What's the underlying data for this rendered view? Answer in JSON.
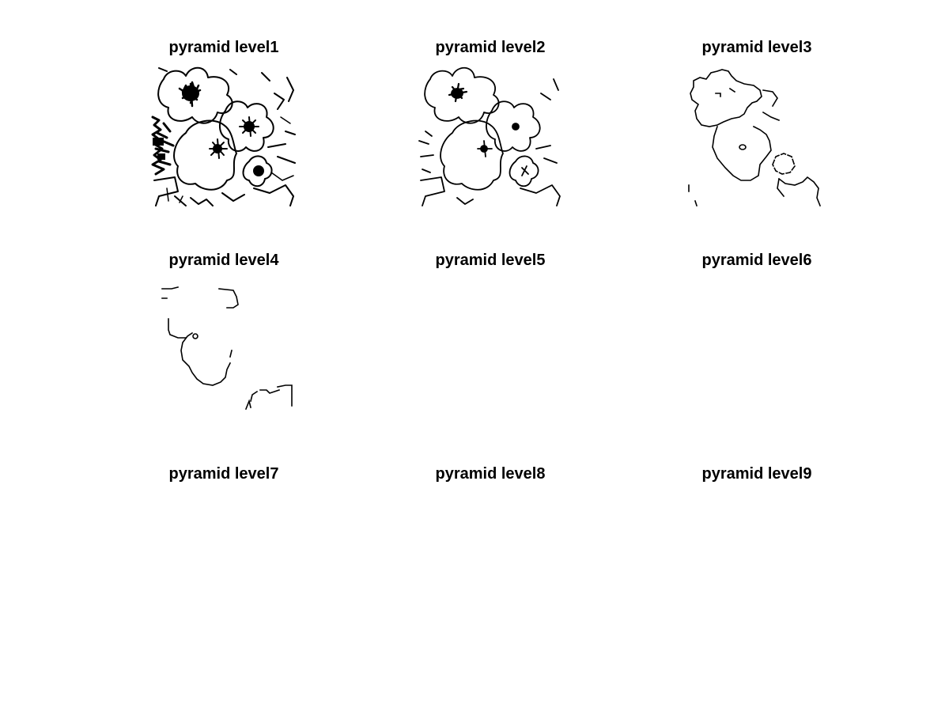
{
  "figure": {
    "panels": [
      {
        "title": "pyramid level1"
      },
      {
        "title": "pyramid level2"
      },
      {
        "title": "pyramid level3"
      },
      {
        "title": "pyramid level4"
      },
      {
        "title": "pyramid level5"
      },
      {
        "title": "pyramid level6"
      },
      {
        "title": "pyramid level7"
      },
      {
        "title": "pyramid level8"
      },
      {
        "title": "pyramid level9"
      }
    ]
  }
}
